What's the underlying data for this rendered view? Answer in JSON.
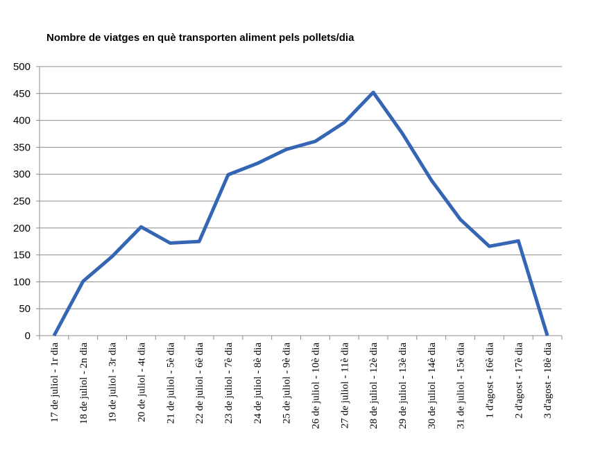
{
  "chart_data": {
    "type": "line",
    "title": "Nombre de viatges en què transporten aliment pels pollets/dia",
    "xlabel": "",
    "ylabel": "",
    "ylim": [
      0,
      500
    ],
    "yticks": [
      0,
      50,
      100,
      150,
      200,
      250,
      300,
      350,
      400,
      450,
      500
    ],
    "grid": true,
    "legend": "none",
    "categories": [
      "17 de juliol - 1r dia",
      "18 de juliol - 2n dia",
      "19 de juliol - 3r dia",
      "20 de juliol - 4t dia",
      "21 de juliol - 5è dia",
      "22 de juliol - 6è dia",
      "23 de juliol - 7è dia",
      "24 de juliol - 8è dia",
      "25 de juliol - 9è dia",
      "26 de juliol - 10è dia",
      "27 de juliol - 11è dia",
      "28 de juliol - 12è dia",
      "29 de juliol - 13è dia",
      "30 de juliol - 14è dia",
      "31 de juliol - 15è dia",
      "1 d'agost - 16è dia",
      "2 d'agost - 17è dia",
      "3 d'agost - 18è dia"
    ],
    "series": [
      {
        "color": "#3466b3",
        "values": [
          0,
          101,
          147,
          202,
          172,
          175,
          299,
          320,
          346,
          361,
          396,
          452,
          376,
          289,
          216,
          166,
          176,
          0
        ]
      }
    ]
  }
}
